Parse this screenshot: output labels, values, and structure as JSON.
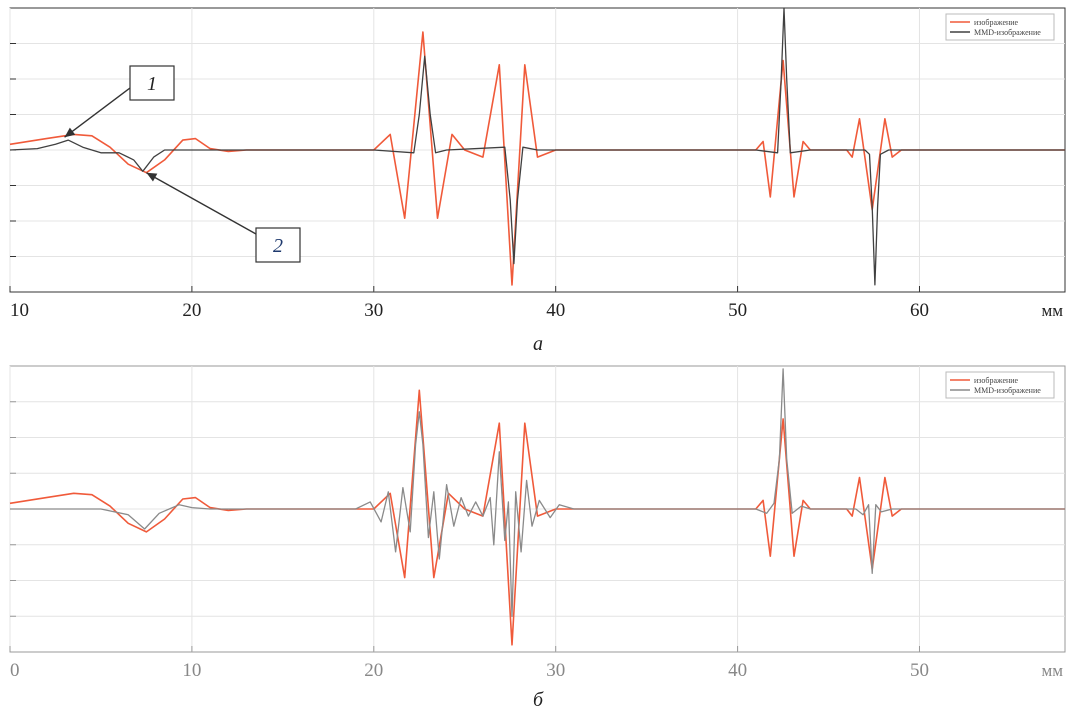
{
  "chart_data": [
    {
      "type": "line",
      "panel_label": "а",
      "unit_label": "мм",
      "xlim": [
        10,
        68
      ],
      "ylim": [
        -1.0,
        1.0
      ],
      "x_ticks": [
        10,
        20,
        30,
        40,
        50,
        60
      ],
      "x_tick_labels": [
        "10",
        "20",
        "30",
        "40",
        "50",
        "60"
      ],
      "grid": true,
      "legend_position": "top-right",
      "annotations": [
        {
          "text": "1",
          "x": 13.0,
          "y": 0.09
        },
        {
          "text": "2",
          "x": 17.5,
          "y": -0.16
        }
      ],
      "series": [
        {
          "name": "изображение",
          "color": "#f05a3a",
          "points": [
            [
              10,
              0.04
            ],
            [
              12,
              0.08
            ],
            [
              13.5,
              0.11
            ],
            [
              14.5,
              0.1
            ],
            [
              15.5,
              0.02
            ],
            [
              16.5,
              -0.1
            ],
            [
              17.5,
              -0.16
            ],
            [
              18.5,
              -0.07
            ],
            [
              19.5,
              0.07
            ],
            [
              20.2,
              0.08
            ],
            [
              21,
              0.01
            ],
            [
              22,
              -0.01
            ],
            [
              23,
              0
            ],
            [
              30,
              0
            ],
            [
              30.9,
              0.11
            ],
            [
              31.7,
              -0.48
            ],
            [
              32.7,
              0.83
            ],
            [
              33.5,
              -0.48
            ],
            [
              34.3,
              0.11
            ],
            [
              35,
              0
            ],
            [
              36,
              -0.05
            ],
            [
              36.9,
              0.6
            ],
            [
              37.6,
              -0.95
            ],
            [
              38.3,
              0.6
            ],
            [
              39,
              -0.05
            ],
            [
              40,
              0
            ],
            [
              51,
              0
            ],
            [
              51.4,
              0.06
            ],
            [
              51.8,
              -0.33
            ],
            [
              52.5,
              0.63
            ],
            [
              53.1,
              -0.33
            ],
            [
              53.6,
              0.06
            ],
            [
              54,
              0
            ],
            [
              56,
              0
            ],
            [
              56.3,
              -0.05
            ],
            [
              56.7,
              0.22
            ],
            [
              57.4,
              -0.42
            ],
            [
              58.1,
              0.22
            ],
            [
              58.5,
              -0.05
            ],
            [
              59,
              0
            ],
            [
              68,
              0
            ]
          ]
        },
        {
          "name": "MMD-изображение",
          "color": "#404040",
          "points": [
            [
              10,
              0
            ],
            [
              11.5,
              0.01
            ],
            [
              12.5,
              0.04
            ],
            [
              13.2,
              0.07
            ],
            [
              14,
              0.02
            ],
            [
              15,
              -0.02
            ],
            [
              16,
              -0.02
            ],
            [
              16.8,
              -0.07
            ],
            [
              17.3,
              -0.15
            ],
            [
              17.9,
              -0.05
            ],
            [
              18.5,
              0
            ],
            [
              23,
              0
            ],
            [
              30,
              0
            ],
            [
              32.2,
              -0.02
            ],
            [
              32.5,
              0.25
            ],
            [
              32.8,
              0.66
            ],
            [
              33.1,
              0.25
            ],
            [
              33.4,
              -0.02
            ],
            [
              34,
              0
            ],
            [
              37.2,
              0.02
            ],
            [
              37.5,
              -0.35
            ],
            [
              37.7,
              -0.8
            ],
            [
              37.9,
              -0.35
            ],
            [
              38.2,
              0.02
            ],
            [
              39,
              0
            ],
            [
              51,
              0
            ],
            [
              52.2,
              -0.02
            ],
            [
              52.4,
              0.5
            ],
            [
              52.55,
              1.0
            ],
            [
              52.7,
              0.5
            ],
            [
              52.9,
              -0.02
            ],
            [
              54,
              0
            ],
            [
              57,
              0
            ],
            [
              57.25,
              -0.03
            ],
            [
              57.4,
              -0.4
            ],
            [
              57.55,
              -0.95
            ],
            [
              57.7,
              -0.4
            ],
            [
              57.85,
              -0.03
            ],
            [
              58.3,
              0
            ],
            [
              68,
              0
            ]
          ]
        }
      ]
    },
    {
      "type": "line",
      "panel_label": "б",
      "unit_label": "мм",
      "xlim": [
        0,
        58
      ],
      "ylim": [
        -1.0,
        1.0
      ],
      "x_ticks": [
        0,
        10,
        20,
        30,
        40,
        50
      ],
      "x_tick_labels": [
        "0",
        "10",
        "20",
        "30",
        "40",
        "50"
      ],
      "grid": true,
      "legend_position": "top-right",
      "series": [
        {
          "name": "изображение",
          "color": "#f05a3a",
          "points": [
            [
              0,
              0.04
            ],
            [
              2,
              0.08
            ],
            [
              3.5,
              0.11
            ],
            [
              4.5,
              0.1
            ],
            [
              5.5,
              0.02
            ],
            [
              6.5,
              -0.1
            ],
            [
              7.5,
              -0.16
            ],
            [
              8.5,
              -0.07
            ],
            [
              9.5,
              0.07
            ],
            [
              10.2,
              0.08
            ],
            [
              11,
              0.01
            ],
            [
              12,
              -0.01
            ],
            [
              13,
              0
            ],
            [
              20,
              0
            ],
            [
              20.9,
              0.11
            ],
            [
              21.7,
              -0.48
            ],
            [
              22.5,
              0.83
            ],
            [
              23.3,
              -0.48
            ],
            [
              24.1,
              0.11
            ],
            [
              25,
              0
            ],
            [
              26,
              -0.05
            ],
            [
              26.9,
              0.6
            ],
            [
              27.6,
              -0.95
            ],
            [
              28.3,
              0.6
            ],
            [
              29,
              -0.05
            ],
            [
              30,
              0
            ],
            [
              41,
              0
            ],
            [
              41.4,
              0.06
            ],
            [
              41.8,
              -0.33
            ],
            [
              42.5,
              0.63
            ],
            [
              43.1,
              -0.33
            ],
            [
              43.6,
              0.06
            ],
            [
              44,
              0
            ],
            [
              46,
              0
            ],
            [
              46.3,
              -0.05
            ],
            [
              46.7,
              0.22
            ],
            [
              47.4,
              -0.42
            ],
            [
              48.1,
              0.22
            ],
            [
              48.5,
              -0.05
            ],
            [
              49,
              0
            ],
            [
              58,
              0
            ]
          ]
        },
        {
          "name": "MMD-изображение",
          "color": "#8a8a8a",
          "points": [
            [
              0,
              0
            ],
            [
              5,
              0
            ],
            [
              6.5,
              -0.04
            ],
            [
              7.4,
              -0.14
            ],
            [
              8.2,
              -0.03
            ],
            [
              9.3,
              0.03
            ],
            [
              10,
              0.01
            ],
            [
              11,
              0
            ],
            [
              19,
              0
            ],
            [
              19.8,
              0.05
            ],
            [
              20.4,
              -0.09
            ],
            [
              20.8,
              0.12
            ],
            [
              21.2,
              -0.3
            ],
            [
              21.6,
              0.15
            ],
            [
              22,
              -0.16
            ],
            [
              22.3,
              0.45
            ],
            [
              22.5,
              0.68
            ],
            [
              22.7,
              0.45
            ],
            [
              23,
              -0.2
            ],
            [
              23.3,
              0.12
            ],
            [
              23.6,
              -0.35
            ],
            [
              24,
              0.17
            ],
            [
              24.4,
              -0.12
            ],
            [
              24.8,
              0.08
            ],
            [
              25.2,
              -0.05
            ],
            [
              25.6,
              0.05
            ],
            [
              26,
              -0.05
            ],
            [
              26.4,
              0.08
            ],
            [
              26.6,
              -0.25
            ],
            [
              26.9,
              0.4
            ],
            [
              27.2,
              -0.22
            ],
            [
              27.4,
              0.05
            ],
            [
              27.6,
              -0.75
            ],
            [
              27.8,
              0.12
            ],
            [
              28.1,
              -0.3
            ],
            [
              28.4,
              0.2
            ],
            [
              28.7,
              -0.12
            ],
            [
              29.1,
              0.06
            ],
            [
              29.7,
              -0.06
            ],
            [
              30.2,
              0.03
            ],
            [
              31,
              0
            ],
            [
              41,
              0
            ],
            [
              41.6,
              -0.03
            ],
            [
              42,
              0.04
            ],
            [
              42.3,
              0.35
            ],
            [
              42.5,
              0.98
            ],
            [
              42.7,
              0.35
            ],
            [
              43,
              -0.03
            ],
            [
              43.5,
              0.02
            ],
            [
              44,
              0
            ],
            [
              46.5,
              0
            ],
            [
              46.9,
              -0.04
            ],
            [
              47.2,
              0.03
            ],
            [
              47.4,
              -0.45
            ],
            [
              47.6,
              0.03
            ],
            [
              47.9,
              -0.02
            ],
            [
              48.5,
              0
            ],
            [
              58,
              0
            ]
          ]
        }
      ]
    }
  ]
}
